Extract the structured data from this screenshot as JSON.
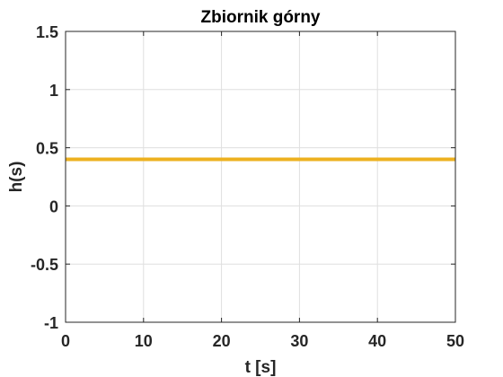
{
  "chart_data": {
    "type": "line",
    "title": "Zbiornik górny",
    "xlabel": "t [s]",
    "ylabel": "h(s)",
    "xlim": [
      0,
      50
    ],
    "ylim": [
      -1,
      1.5
    ],
    "xticks": [
      0,
      10,
      20,
      30,
      40,
      50
    ],
    "yticks": [
      -1,
      -0.5,
      0,
      0.5,
      1,
      1.5
    ],
    "xtick_labels": [
      "0",
      "10",
      "20",
      "30",
      "40",
      "50"
    ],
    "ytick_labels": [
      "-1",
      "-0.5",
      "0",
      "0.5",
      "1",
      "1.5"
    ],
    "grid": true,
    "box": true,
    "series": [
      {
        "x": [
          0,
          50
        ],
        "values": [
          0.4,
          0.4
        ],
        "color": "#EDB120"
      }
    ]
  }
}
